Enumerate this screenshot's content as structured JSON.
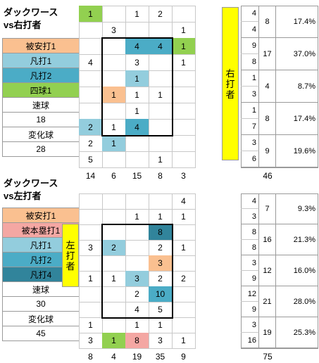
{
  "colors": {
    "hit": "#fac090",
    "homer": "#f4a7a3",
    "fly1": "#93cddd",
    "fly2": "#4bacc6",
    "fly4": "#31849b",
    "walk": "#92d050",
    "bar": "#ffff00"
  },
  "top": {
    "title1": "ダックワース",
    "title2": "vs右打者",
    "bar_label": [
      "右",
      "打",
      "者"
    ],
    "legend": [
      {
        "label": "被安打1",
        "color": "hit"
      },
      {
        "label": "凡打1",
        "color": "fly1"
      },
      {
        "label": "凡打2",
        "color": "fly2"
      },
      {
        "label": "四球1",
        "color": "walk"
      }
    ],
    "fastball_label": "速球",
    "fastball_value": "18",
    "breaking_label": "変化球",
    "breaking_value": "28",
    "grid": [
      [
        {
          "v": "1",
          "c": "walk"
        },
        {
          "v": "",
          "c": ""
        },
        {
          "v": "1",
          "c": ""
        },
        {
          "v": "2",
          "c": ""
        },
        {
          "v": "",
          "c": ""
        }
      ],
      [
        {
          "v": "",
          "c": ""
        },
        {
          "v": "3",
          "c": ""
        },
        {
          "v": "",
          "c": ""
        },
        {
          "v": "",
          "c": ""
        },
        {
          "v": "1",
          "c": ""
        }
      ],
      [
        {
          "v": "",
          "c": ""
        },
        {
          "v": "",
          "c": ""
        },
        {
          "v": "4",
          "c": "fly2"
        },
        {
          "v": "4",
          "c": "fly2"
        },
        {
          "v": "1",
          "c": "walk"
        }
      ],
      [
        {
          "v": "4",
          "c": ""
        },
        {
          "v": "",
          "c": ""
        },
        {
          "v": "3",
          "c": ""
        },
        {
          "v": "",
          "c": ""
        },
        {
          "v": "1",
          "c": ""
        }
      ],
      [
        {
          "v": "",
          "c": ""
        },
        {
          "v": "",
          "c": ""
        },
        {
          "v": "1",
          "c": "fly1"
        },
        {
          "v": "",
          "c": ""
        },
        {
          "v": "",
          "c": ""
        }
      ],
      [
        {
          "v": "",
          "c": ""
        },
        {
          "v": "1",
          "c": "hit"
        },
        {
          "v": "1",
          "c": ""
        },
        {
          "v": "1",
          "c": ""
        },
        {
          "v": "",
          "c": ""
        }
      ],
      [
        {
          "v": "",
          "c": ""
        },
        {
          "v": "",
          "c": ""
        },
        {
          "v": "1",
          "c": ""
        },
        {
          "v": "",
          "c": ""
        },
        {
          "v": "",
          "c": ""
        }
      ],
      [
        {
          "v": "2",
          "c": "fly1"
        },
        {
          "v": "1",
          "c": ""
        },
        {
          "v": "4",
          "c": "fly2"
        },
        {
          "v": "",
          "c": ""
        },
        {
          "v": "",
          "c": ""
        }
      ],
      [
        {
          "v": "2",
          "c": ""
        },
        {
          "v": "1",
          "c": "fly1"
        },
        {
          "v": "",
          "c": ""
        },
        {
          "v": "",
          "c": ""
        },
        {
          "v": "",
          "c": ""
        }
      ],
      [
        {
          "v": "5",
          "c": ""
        },
        {
          "v": "",
          "c": ""
        },
        {
          "v": "",
          "c": ""
        },
        {
          "v": "1",
          "c": ""
        },
        {
          "v": "",
          "c": ""
        }
      ]
    ],
    "col_totals": [
      "14",
      "6",
      "15",
      "8",
      "3"
    ],
    "row_sums": [
      {
        "a": "4",
        "b": "4",
        "total": "8",
        "pct": "17.4%"
      },
      {
        "a": "9",
        "b": "8",
        "total": "17",
        "pct": "37.0%"
      },
      {
        "a": "1",
        "b": "3",
        "total": "4",
        "pct": "8.7%"
      },
      {
        "a": "1",
        "b": "7",
        "total": "8",
        "pct": "17.4%"
      },
      {
        "a": "3",
        "b": "6",
        "total": "9",
        "pct": "19.6%"
      }
    ],
    "grand_total": "46"
  },
  "bottom": {
    "title1": "ダックワース",
    "title2": "vs左打者",
    "bar_label": [
      "左",
      "打",
      "者"
    ],
    "legend": [
      {
        "label": "被安打1",
        "color": "hit"
      },
      {
        "label": "被本塁打1",
        "color": "homer"
      },
      {
        "label": "凡打1",
        "color": "fly1"
      },
      {
        "label": "凡打2",
        "color": "fly2"
      },
      {
        "label": "凡打4",
        "color": "fly4"
      }
    ],
    "fastball_label": "速球",
    "fastball_value": "30",
    "breaking_label": "変化球",
    "breaking_value": "45",
    "grid": [
      [
        {
          "v": "",
          "c": ""
        },
        {
          "v": "",
          "c": ""
        },
        {
          "v": "",
          "c": ""
        },
        {
          "v": "",
          "c": ""
        },
        {
          "v": "4",
          "c": ""
        }
      ],
      [
        {
          "v": "",
          "c": ""
        },
        {
          "v": "",
          "c": ""
        },
        {
          "v": "1",
          "c": ""
        },
        {
          "v": "1",
          "c": ""
        },
        {
          "v": "1",
          "c": ""
        }
      ],
      [
        {
          "v": "",
          "c": ""
        },
        {
          "v": "",
          "c": ""
        },
        {
          "v": "",
          "c": ""
        },
        {
          "v": "8",
          "c": "fly4"
        },
        {
          "v": "",
          "c": ""
        }
      ],
      [
        {
          "v": "3",
          "c": ""
        },
        {
          "v": "2",
          "c": "fly1"
        },
        {
          "v": "",
          "c": ""
        },
        {
          "v": "2",
          "c": ""
        },
        {
          "v": "1",
          "c": ""
        }
      ],
      [
        {
          "v": "",
          "c": ""
        },
        {
          "v": "",
          "c": ""
        },
        {
          "v": "",
          "c": ""
        },
        {
          "v": "3",
          "c": "hit"
        },
        {
          "v": "",
          "c": ""
        }
      ],
      [
        {
          "v": "1",
          "c": ""
        },
        {
          "v": "1",
          "c": ""
        },
        {
          "v": "3",
          "c": "fly1"
        },
        {
          "v": "2",
          "c": ""
        },
        {
          "v": "2",
          "c": ""
        }
      ],
      [
        {
          "v": "",
          "c": ""
        },
        {
          "v": "",
          "c": ""
        },
        {
          "v": "2",
          "c": ""
        },
        {
          "v": "10",
          "c": "fly2"
        },
        {
          "v": "",
          "c": ""
        }
      ],
      [
        {
          "v": "",
          "c": ""
        },
        {
          "v": "",
          "c": ""
        },
        {
          "v": "4",
          "c": ""
        },
        {
          "v": "5",
          "c": ""
        },
        {
          "v": "",
          "c": ""
        }
      ],
      [
        {
          "v": "1",
          "c": ""
        },
        {
          "v": "",
          "c": ""
        },
        {
          "v": "1",
          "c": ""
        },
        {
          "v": "1",
          "c": ""
        },
        {
          "v": "",
          "c": ""
        }
      ],
      [
        {
          "v": "3",
          "c": ""
        },
        {
          "v": "1",
          "c": "walkx"
        },
        {
          "v": "8",
          "c": "homer"
        },
        {
          "v": "3",
          "c": ""
        },
        {
          "v": "1",
          "c": ""
        }
      ]
    ],
    "col_totals": [
      "8",
      "4",
      "19",
      "35",
      "9"
    ],
    "row_sums": [
      {
        "a": "4",
        "b": "3",
        "total": "7",
        "pct": "9.3%"
      },
      {
        "a": "8",
        "b": "8",
        "total": "16",
        "pct": "21.3%"
      },
      {
        "a": "3",
        "b": "9",
        "total": "12",
        "pct": "16.0%"
      },
      {
        "a": "12",
        "b": "9",
        "total": "21",
        "pct": "28.0%"
      },
      {
        "a": "3",
        "b": "16",
        "total": "19",
        "pct": "25.3%"
      }
    ],
    "grand_total": "75"
  }
}
